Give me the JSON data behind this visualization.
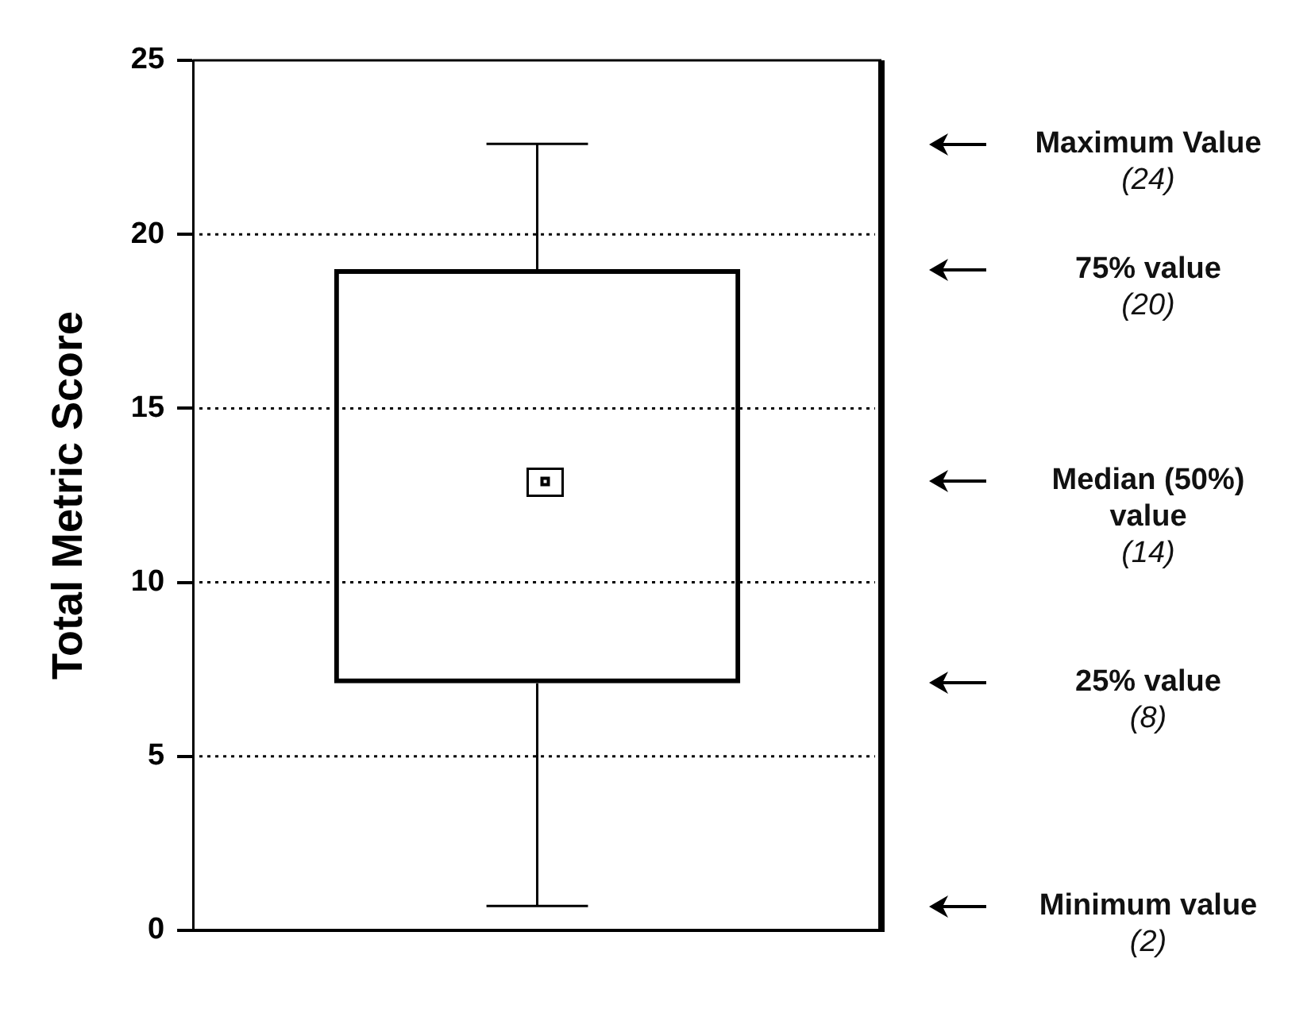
{
  "chart_data": {
    "type": "box",
    "ylabel": "Total Metric Score",
    "categories": [
      null
    ],
    "boxes": [
      {
        "low": 0.7,
        "q1": 7.1,
        "median": 12.9,
        "q3": 19.0,
        "high": 22.6
      }
    ],
    "ylim": [
      0,
      25
    ],
    "yticks": [
      0,
      5,
      10,
      15,
      20,
      25
    ],
    "grid": "y",
    "tick_labels": "y",
    "line_style": "dotted",
    "annotations": [
      "Maximum Value\n(24)",
      "75% value\n(20)",
      "Median (50%)\nvalue\n(14)",
      "25% value\n(8)",
      "Minimum value\n(2)"
    ]
  }
}
